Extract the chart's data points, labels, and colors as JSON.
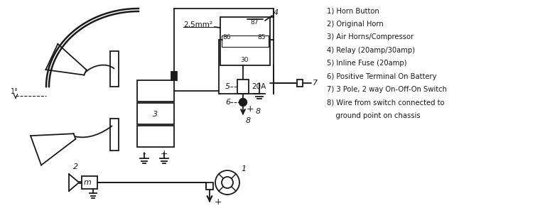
{
  "bg_color": "#ffffff",
  "line_color": "#1a1a1a",
  "legend": [
    "1) Horn Button",
    "2) Original Horn",
    "3) Air Horns/Compressor",
    "4) Relay (20amp/30amp)",
    "5) Inline Fuse (20amp)",
    "6) Positive Terminal On Battery",
    "7) 3 Pole, 2 way On-Off-On Switch",
    "8) Wire from switch connected to",
    "    ground point on chassis"
  ],
  "relay_label": "2,5mm²",
  "fuse_label": "20A",
  "relay_terminals": [
    "87",
    "86",
    "85",
    "30"
  ]
}
